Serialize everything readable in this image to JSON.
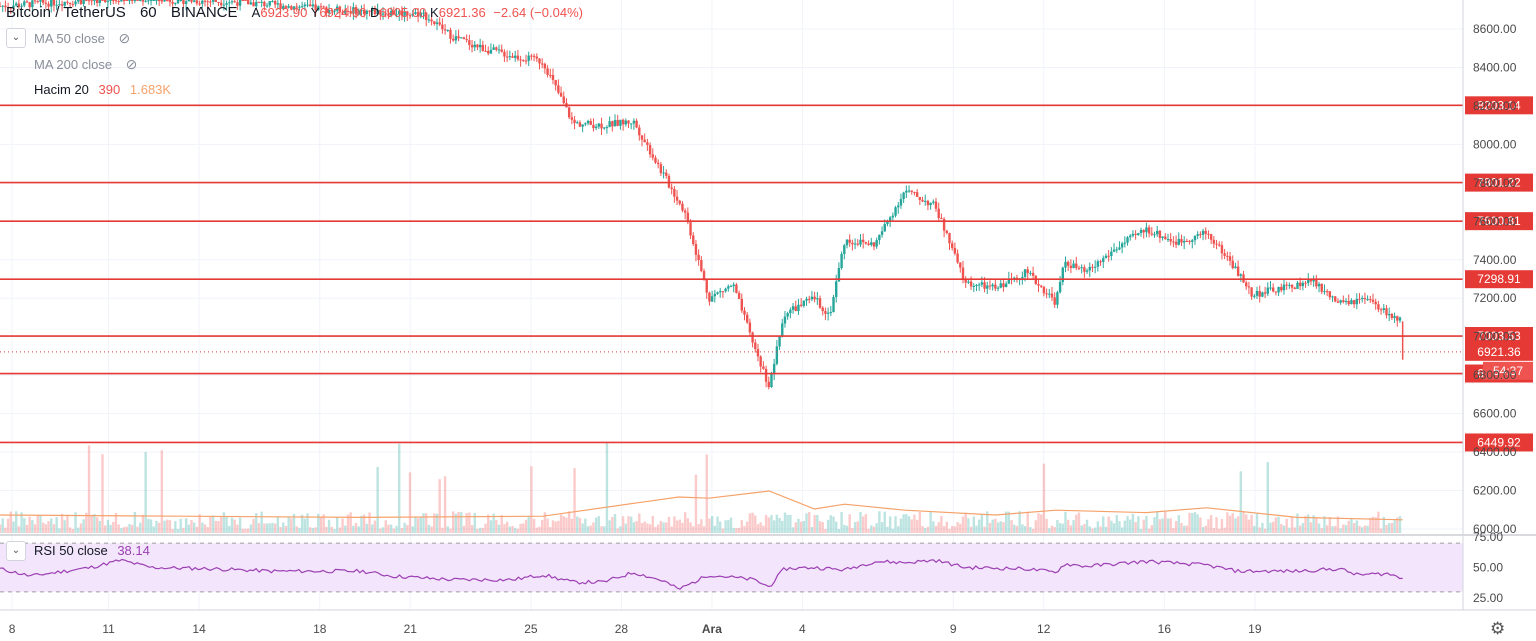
{
  "header": {
    "symbol": "Bitcoin / TetherUS",
    "interval": "60",
    "exchange": "BINANCE",
    "open_label": "A",
    "open_value": "6923.90",
    "high_label": "Y",
    "high_value": "6924.00",
    "low_label": "D",
    "low_value": "6905.00",
    "close_label": "K",
    "close_value": "6921.36",
    "change": "−2.64 (−0.04%)"
  },
  "legend": {
    "ma50": "MA 50 close",
    "ma200": "MA 200 close",
    "volume_label": "Hacim 20",
    "volume_value": "390",
    "volume_ma": "1.683K"
  },
  "rsi_legend": {
    "label": "RSI 50 close",
    "value": "38.14"
  },
  "price_badges": {
    "last_price": "6921.36",
    "countdown": "54:37"
  },
  "colors": {
    "up": "#26a69a",
    "down": "#ef5350",
    "hline": "#e53935",
    "volume_ma": "#f5a26a",
    "rsi": "#9c3fb3",
    "rsi_band": "#f3e5fc",
    "grid": "#f0f3fa",
    "axis_text": "#4a4a4a"
  },
  "chart_data": [
    {
      "type": "candlestick",
      "x_ticks": [
        "8",
        "11",
        "14",
        "18",
        "21",
        "25",
        "28",
        "Ara",
        "4",
        "9",
        "12",
        "16",
        "19"
      ],
      "y_ticks": [
        "6000.00",
        "6200.00",
        "6400.00",
        "6600.00",
        "6800.00",
        "7000.00",
        "7200.00",
        "7400.00",
        "7600.00",
        "7800.00",
        "8000.00",
        "8200.00",
        "8400.00",
        "8600.00"
      ],
      "ylim": [
        5995,
        8690
      ],
      "horizontal_lines": [
        8203.14,
        7801.22,
        7600.81,
        7298.91,
        7003.53,
        6808.53,
        6449.92
      ],
      "horizontal_line_labels": [
        "8203.14",
        "7801.22",
        "7600.81",
        "7298.91",
        "7003.53",
        "6808.53",
        "6449.92"
      ],
      "last_price": 6921.36,
      "price_path": [
        [
          0,
          8720
        ],
        [
          4,
          8760
        ],
        [
          8,
          8740
        ],
        [
          11,
          8700
        ],
        [
          14,
          8680
        ],
        [
          15,
          8560
        ],
        [
          16,
          8500
        ],
        [
          17,
          8460
        ],
        [
          18,
          8430
        ],
        [
          19,
          8110
        ],
        [
          20,
          8100
        ],
        [
          21,
          8120
        ],
        [
          22,
          7840
        ],
        [
          22.7,
          7650
        ],
        [
          23.5,
          7200
        ],
        [
          24.3,
          7270
        ],
        [
          25,
          6950
        ],
        [
          25.5,
          6740
        ],
        [
          26,
          7120
        ],
        [
          27,
          7200
        ],
        [
          27.5,
          7110
        ],
        [
          28,
          7500
        ],
        [
          29,
          7480
        ],
        [
          30,
          7760
        ],
        [
          31,
          7680
        ],
        [
          32,
          7280
        ],
        [
          33,
          7250
        ],
        [
          34,
          7340
        ],
        [
          35,
          7180
        ],
        [
          35.3,
          7390
        ],
        [
          36,
          7330
        ],
        [
          37,
          7460
        ],
        [
          38,
          7560
        ],
        [
          39,
          7490
        ],
        [
          40,
          7540
        ],
        [
          40.8,
          7390
        ],
        [
          41.5,
          7220
        ],
        [
          42.5,
          7250
        ],
        [
          43.5,
          7290
        ],
        [
          44.4,
          7170
        ],
        [
          45.3,
          7190
        ],
        [
          46,
          7120
        ],
        [
          46.5,
          7075
        ]
      ],
      "volume_ma_path": [
        [
          0,
          30
        ],
        [
          6,
          28
        ],
        [
          12,
          26
        ],
        [
          18,
          28
        ],
        [
          22.5,
          60
        ],
        [
          23.5,
          58
        ],
        [
          25.5,
          70
        ],
        [
          27,
          40
        ],
        [
          28,
          48
        ],
        [
          30,
          38
        ],
        [
          33,
          30
        ],
        [
          35,
          38
        ],
        [
          38,
          34
        ],
        [
          40,
          42
        ],
        [
          43,
          26
        ],
        [
          46.5,
          22
        ]
      ]
    },
    {
      "type": "line",
      "title": "RSI 50 close",
      "y_ticks": [
        "25.00",
        "50.00",
        "75.00"
      ],
      "ylim": [
        25,
        75
      ],
      "path": [
        [
          0,
          49
        ],
        [
          1,
          43
        ],
        [
          3,
          50
        ],
        [
          4,
          56
        ],
        [
          5,
          50
        ],
        [
          7,
          49
        ],
        [
          9,
          47
        ],
        [
          10,
          47
        ],
        [
          12,
          47
        ],
        [
          13,
          43
        ],
        [
          15,
          40
        ],
        [
          17,
          40
        ],
        [
          18,
          44
        ],
        [
          19,
          38
        ],
        [
          20,
          38
        ],
        [
          21,
          46
        ],
        [
          22,
          39
        ],
        [
          22.5,
          32
        ],
        [
          23.5,
          44
        ],
        [
          25,
          40
        ],
        [
          25.5,
          34
        ],
        [
          26,
          49
        ],
        [
          27,
          50
        ],
        [
          28,
          48
        ],
        [
          29,
          55
        ],
        [
          30,
          54
        ],
        [
          31,
          56
        ],
        [
          32,
          50
        ],
        [
          34,
          49
        ],
        [
          35,
          46
        ],
        [
          35.3,
          53
        ],
        [
          36,
          51
        ],
        [
          38,
          55
        ],
        [
          40,
          52
        ],
        [
          41,
          47
        ],
        [
          43,
          47
        ],
        [
          44.4,
          49
        ],
        [
          45,
          44
        ],
        [
          46,
          45
        ],
        [
          46.5,
          41
        ]
      ]
    }
  ]
}
